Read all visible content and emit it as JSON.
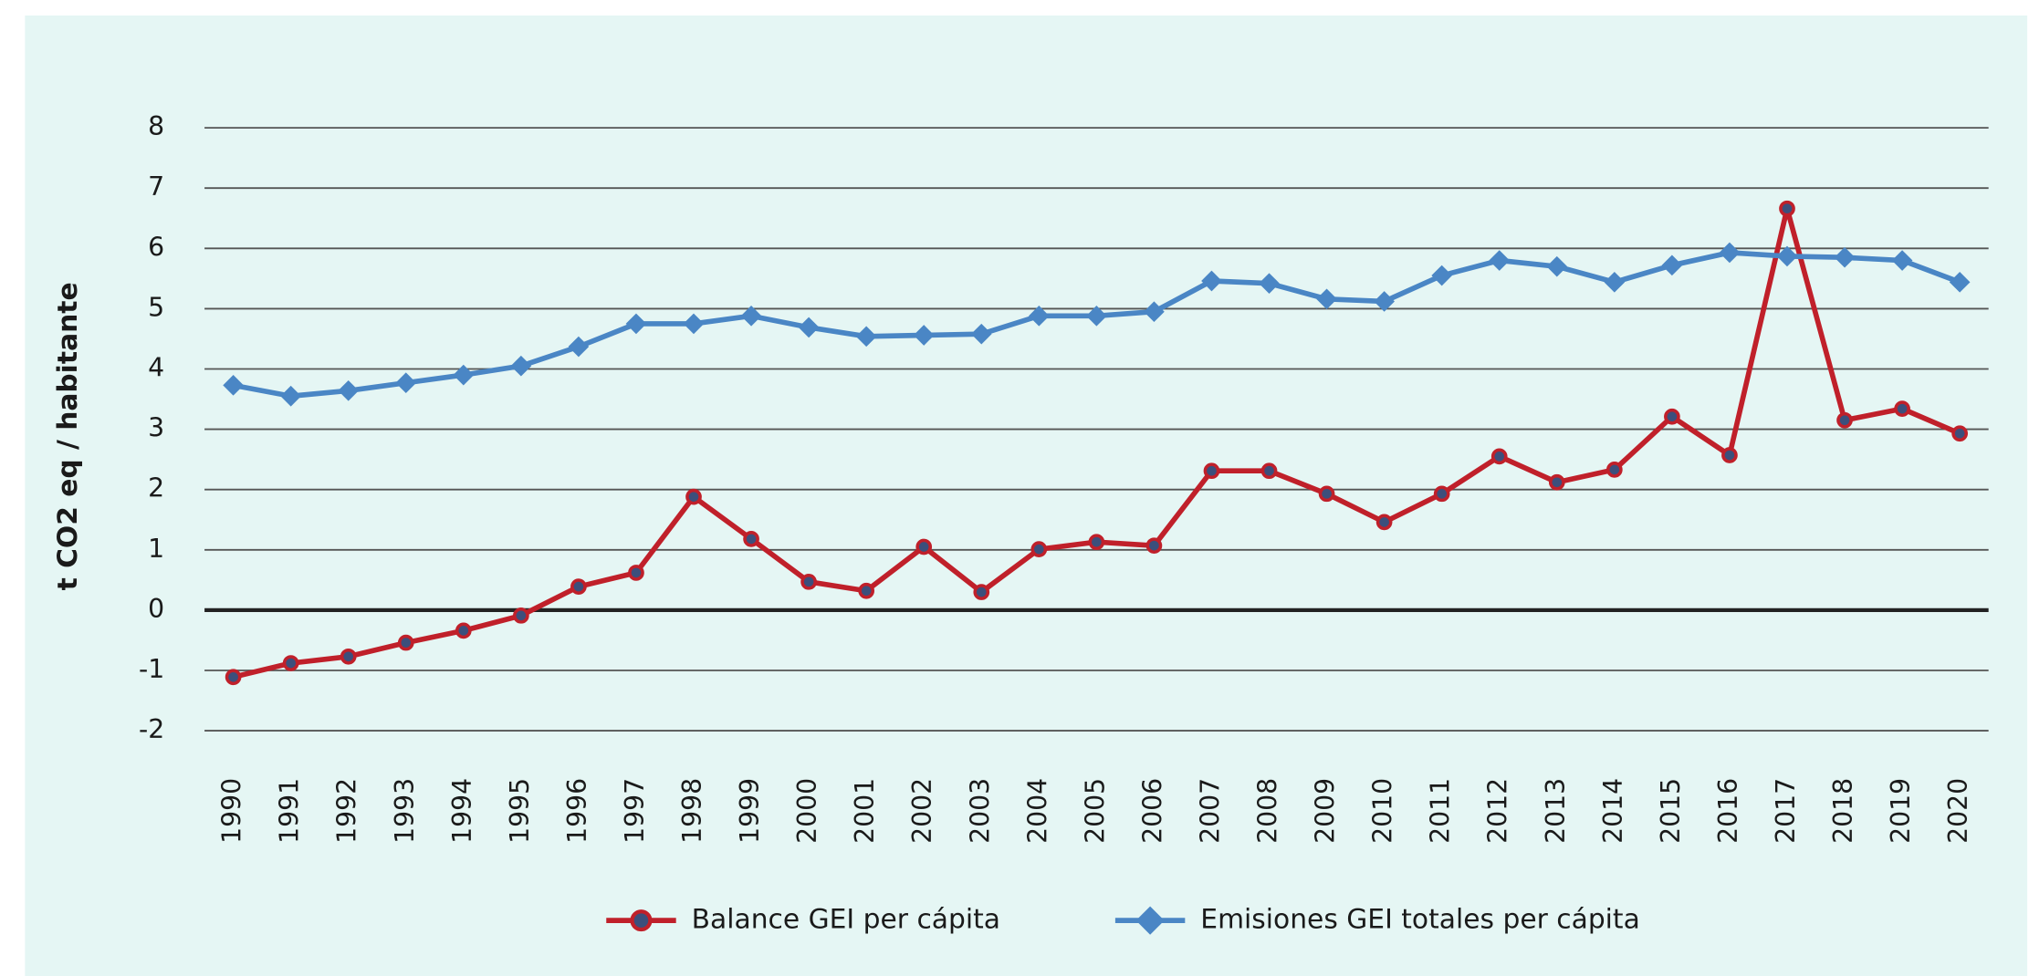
{
  "chart_data": {
    "type": "line",
    "y_label": "t CO2 eq / habitante",
    "categories": [
      "1990",
      "1991",
      "1992",
      "1993",
      "1994",
      "1995",
      "1996",
      "1997",
      "1998",
      "1999",
      "2000",
      "2001",
      "2002",
      "2003",
      "2004",
      "2005",
      "2006",
      "2007",
      "2008",
      "2009",
      "2010",
      "2011",
      "2012",
      "2013",
      "2014",
      "2015",
      "2016",
      "2017",
      "2018",
      "2019",
      "2020"
    ],
    "series": [
      {
        "name": "Balance GEI per cápita",
        "color": "#c0202a",
        "marker": "circle",
        "values": [
          -1.11,
          -0.88,
          -0.77,
          -0.54,
          -0.34,
          -0.09,
          0.39,
          0.62,
          1.88,
          1.18,
          0.47,
          0.32,
          1.05,
          0.3,
          1.01,
          1.13,
          1.07,
          2.31,
          2.31,
          1.93,
          1.46,
          1.93,
          2.55,
          2.12,
          2.33,
          3.21,
          2.57,
          6.66,
          3.15,
          3.34,
          2.93
        ]
      },
      {
        "name": "Emisiones GEI totales per cápita",
        "color": "#4a86c5",
        "marker": "diamond",
        "values": [
          3.73,
          3.55,
          3.64,
          3.77,
          3.9,
          4.05,
          4.37,
          4.75,
          4.75,
          4.88,
          4.69,
          4.54,
          4.56,
          4.58,
          4.88,
          4.88,
          4.95,
          5.46,
          5.42,
          5.16,
          5.12,
          5.55,
          5.8,
          5.7,
          5.44,
          5.72,
          5.93,
          5.87,
          5.85,
          5.8,
          5.44
        ]
      }
    ],
    "ylim": [
      -2,
      8
    ],
    "yticks": [
      -2,
      -1,
      0,
      1,
      2,
      3,
      4,
      5,
      6,
      7,
      8
    ],
    "grid": true,
    "legend": "bottom"
  }
}
